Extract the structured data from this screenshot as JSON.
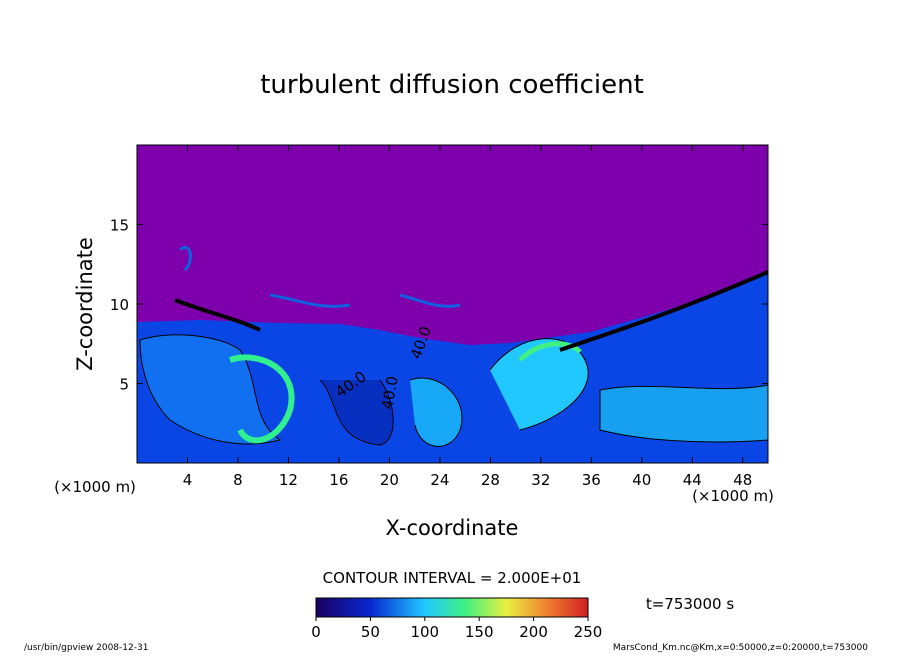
{
  "chart_data": {
    "type": "contour",
    "title": "turbulent diffusion coefficient",
    "x_label": "X-coordinate",
    "y_label": "Z-coordinate",
    "x_unit_labels": [
      "(×1000 m)",
      "(×1000 m)"
    ],
    "xlim": [
      0,
      50
    ],
    "xticks": [
      4,
      8,
      12,
      16,
      20,
      24,
      28,
      32,
      36,
      40,
      44,
      48
    ],
    "ylim": [
      0,
      20
    ],
    "yticks": [
      5,
      10,
      15
    ],
    "contour_labels": [
      "40.0",
      "40.0",
      "40.0"
    ],
    "contour_interval": "CONTOUR INTERVAL = 2.000E+01",
    "colorbar": {
      "lim": [
        0,
        250
      ],
      "ticks": [
        0,
        50,
        100,
        150,
        200,
        250
      ]
    },
    "time_label": "t=753000 s",
    "footer_left": "/usr/bin/gpview  2008-12-31",
    "footer_right": "MarsCond_Km.nc@Km,x=0:50000,z=0:20000,t=753000"
  }
}
